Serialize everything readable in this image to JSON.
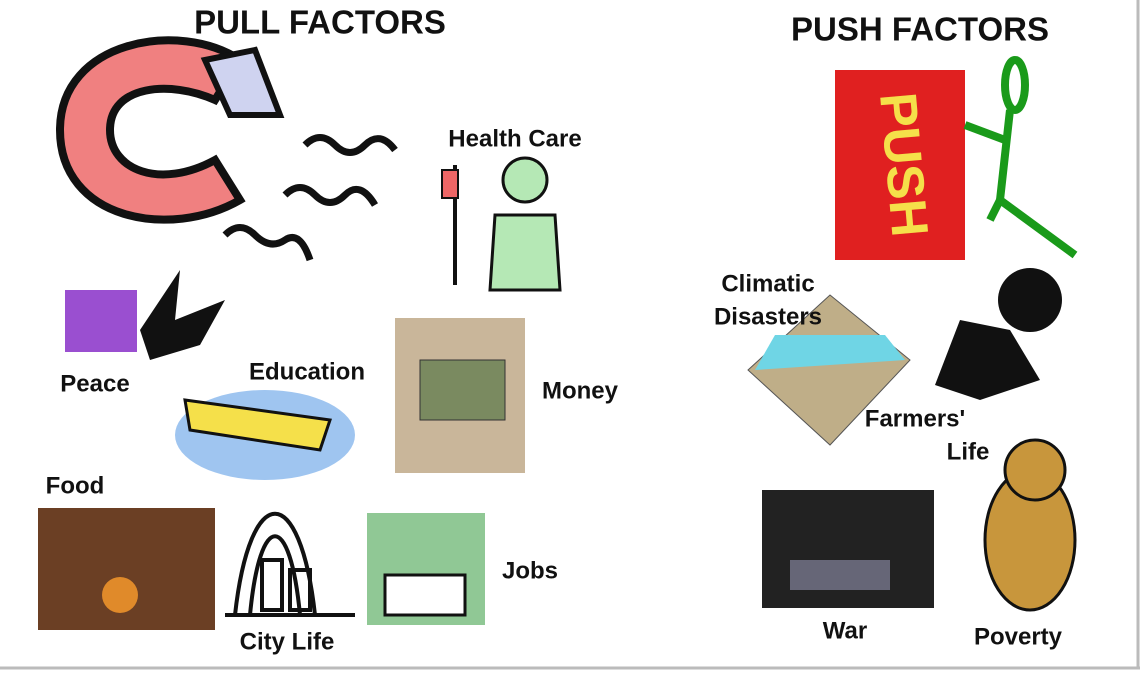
{
  "pull": {
    "title": "PULL FACTORS",
    "items": [
      "Health Care",
      "Peace",
      "Education",
      "Money",
      "Food",
      "City Life",
      "Jobs"
    ]
  },
  "push": {
    "title": "PUSH FACTORS",
    "sign": "PUSH",
    "items": [
      [
        "Climatic",
        "Disasters"
      ],
      [
        "Farmers'",
        "Life"
      ],
      "War",
      "Poverty"
    ]
  }
}
